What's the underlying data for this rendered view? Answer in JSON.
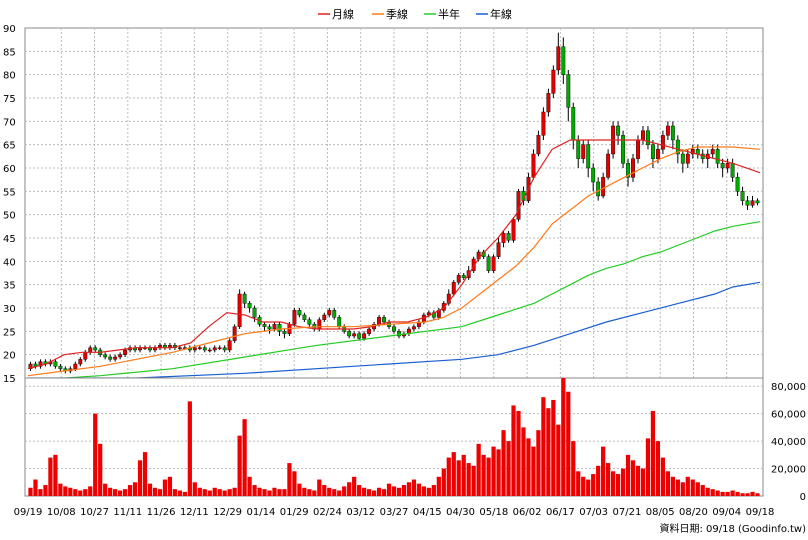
{
  "chart_data": [
    {
      "type": "candlestick",
      "legend": {
        "placement": "top-center",
        "entries": [
          {
            "label": "月線",
            "color": "#e02020"
          },
          {
            "label": "季線",
            "color": "#ff7a1a"
          },
          {
            "label": "半年",
            "color": "#22cc22"
          },
          {
            "label": "年線",
            "color": "#1a5fd0"
          }
        ]
      },
      "ylim": [
        15,
        90
      ],
      "yticks": [
        15,
        20,
        25,
        30,
        35,
        40,
        45,
        50,
        55,
        60,
        65,
        70,
        75,
        80,
        85,
        90
      ],
      "grid": true,
      "colors": {
        "up": "#e00000",
        "down": "#00aa00"
      },
      "series": [
        {
          "name": "月線",
          "x": [
            0,
            4,
            8,
            12,
            16,
            20,
            24,
            28,
            32,
            36,
            40,
            44,
            48,
            52,
            56,
            60,
            64,
            68,
            72,
            76,
            80,
            84,
            88,
            92,
            96,
            100,
            104,
            108,
            112,
            116,
            120,
            124,
            128,
            132,
            136,
            140,
            144,
            148,
            152,
            156,
            162
          ],
          "values": [
            17,
            18,
            20,
            20.5,
            20.5,
            21,
            21.5,
            21.5,
            21.5,
            22.5,
            26,
            29,
            28.5,
            27,
            27,
            26,
            25.5,
            25.5,
            25.5,
            26,
            27,
            27,
            28,
            30,
            35,
            41,
            45,
            50,
            58,
            64,
            66,
            66,
            66,
            66,
            66,
            65,
            64,
            63,
            62,
            61,
            59
          ]
        },
        {
          "name": "季線",
          "x": [
            0,
            8,
            16,
            24,
            32,
            40,
            48,
            56,
            64,
            72,
            80,
            88,
            92,
            96,
            100,
            104,
            108,
            112,
            116,
            120,
            124,
            128,
            132,
            136,
            140,
            144,
            148,
            152,
            156,
            162
          ],
          "values": [
            15.5,
            16.5,
            17.5,
            19,
            20.5,
            22.5,
            24.5,
            25.5,
            26,
            26,
            26.5,
            27,
            28,
            30,
            33,
            36,
            39,
            43,
            48,
            51,
            54,
            56,
            58,
            60,
            62,
            63.5,
            64.5,
            64.5,
            64.5,
            64
          ]
        },
        {
          "name": "半年",
          "x": [
            0,
            16,
            32,
            48,
            64,
            80,
            96,
            104,
            112,
            116,
            120,
            124,
            128,
            132,
            136,
            140,
            144,
            148,
            152,
            156,
            162
          ],
          "values": [
            14.5,
            15.5,
            17,
            19.5,
            22,
            24,
            26,
            28.5,
            31,
            33,
            35,
            37,
            38.5,
            39.5,
            41,
            42,
            43.5,
            45,
            46.5,
            47.5,
            48.5
          ]
        },
        {
          "name": "年線",
          "x": [
            0,
            24,
            48,
            72,
            96,
            104,
            112,
            120,
            128,
            136,
            144,
            152,
            156,
            162
          ],
          "values": [
            15,
            15,
            16,
            17.5,
            19,
            20,
            22,
            24.5,
            27,
            29,
            31,
            33,
            34.5,
            35.5
          ]
        }
      ],
      "candles": [
        [
          17,
          18,
          18.5,
          16.5
        ],
        [
          18,
          17.5,
          18.5,
          17
        ],
        [
          17.5,
          18.5,
          19,
          17
        ],
        [
          18.5,
          18,
          19,
          17.5
        ],
        [
          18,
          18.5,
          19,
          17.5
        ],
        [
          18.5,
          17.5,
          19,
          17
        ],
        [
          17.5,
          17,
          18,
          16.5
        ],
        [
          17,
          16.5,
          17.5,
          16
        ],
        [
          16.5,
          17,
          17.5,
          16
        ],
        [
          17,
          18,
          18.5,
          16.5
        ],
        [
          18,
          19,
          19.5,
          17.5
        ],
        [
          19,
          20.5,
          21,
          18.5
        ],
        [
          20.5,
          21.5,
          22,
          20
        ],
        [
          21.5,
          21,
          22,
          20.5
        ],
        [
          21,
          20,
          21.5,
          19.5
        ],
        [
          20,
          19.5,
          20.5,
          19
        ],
        [
          19.5,
          19,
          20,
          18.5
        ],
        [
          19,
          19.5,
          20,
          18.5
        ],
        [
          19.5,
          20,
          20.5,
          19
        ],
        [
          20,
          21,
          21.5,
          19.5
        ],
        [
          21,
          21.5,
          22,
          20.5
        ],
        [
          21.5,
          21,
          22,
          20.5
        ],
        [
          21,
          21.5,
          22,
          20.5
        ],
        [
          21.5,
          21.5,
          22,
          21
        ],
        [
          21.5,
          21,
          22,
          20.5
        ],
        [
          21,
          21.5,
          22,
          20.5
        ],
        [
          21.5,
          22,
          22.5,
          21
        ],
        [
          22,
          21.5,
          22.5,
          21
        ],
        [
          21.5,
          22,
          22.5,
          21
        ],
        [
          22,
          21.5,
          22.5,
          21
        ],
        [
          21.5,
          21.5,
          22,
          21
        ],
        [
          21.5,
          21.5,
          22,
          21
        ],
        [
          21.5,
          21,
          22,
          20.5
        ],
        [
          21,
          21.5,
          22,
          20.5
        ],
        [
          21.5,
          21.5,
          22,
          21
        ],
        [
          21.5,
          21,
          22,
          20.5
        ],
        [
          21,
          21,
          21.5,
          20.5
        ],
        [
          21,
          21.5,
          22,
          20.5
        ],
        [
          21.5,
          21.5,
          22,
          21
        ],
        [
          21.5,
          21,
          22,
          20.5
        ],
        [
          21,
          23,
          23.5,
          20.5
        ],
        [
          23,
          26,
          26.5,
          22.5
        ],
        [
          26,
          33,
          34,
          25.5
        ],
        [
          33,
          31,
          33.5,
          30
        ],
        [
          31,
          30,
          31.5,
          29
        ],
        [
          30,
          28,
          30.5,
          27
        ],
        [
          28,
          26.5,
          28.5,
          26
        ],
        [
          26.5,
          26,
          27,
          25
        ],
        [
          26,
          25.5,
          26.5,
          24.5
        ],
        [
          25.5,
          26.5,
          27,
          25
        ],
        [
          26.5,
          25,
          27,
          24
        ],
        [
          25,
          24.5,
          25.5,
          23.5
        ],
        [
          24.5,
          26.5,
          27,
          24
        ],
        [
          26.5,
          29.5,
          30,
          26
        ],
        [
          29.5,
          28.5,
          30,
          28
        ],
        [
          28.5,
          27.5,
          29,
          27
        ],
        [
          27.5,
          26.5,
          28,
          26
        ],
        [
          26.5,
          25.5,
          27,
          25
        ],
        [
          25.5,
          27.5,
          28,
          25
        ],
        [
          27.5,
          28.5,
          29,
          27
        ],
        [
          28.5,
          29.5,
          30,
          28
        ],
        [
          29.5,
          28,
          30,
          27.5
        ],
        [
          28,
          26,
          28.5,
          25.5
        ],
        [
          26,
          25,
          26.5,
          24.5
        ],
        [
          25,
          24,
          25.5,
          23.5
        ],
        [
          24,
          24.5,
          25,
          23.5
        ],
        [
          24.5,
          23.5,
          25,
          23
        ],
        [
          23.5,
          24.5,
          25,
          23
        ],
        [
          24.5,
          25.5,
          26,
          24
        ],
        [
          25.5,
          26.5,
          27,
          25
        ],
        [
          26.5,
          28,
          28.5,
          26
        ],
        [
          28,
          27,
          28.5,
          26.5
        ],
        [
          27,
          26,
          27.5,
          25.5
        ],
        [
          26,
          25,
          26.5,
          24.5
        ],
        [
          25,
          24,
          25.5,
          23.5
        ],
        [
          24,
          24.5,
          25,
          23.5
        ],
        [
          24.5,
          25.5,
          26,
          24
        ],
        [
          25.5,
          26,
          26.5,
          25
        ],
        [
          26,
          27,
          27.5,
          25.5
        ],
        [
          27,
          28.5,
          29,
          26.5
        ],
        [
          28.5,
          29,
          29.5,
          28
        ],
        [
          29,
          28,
          29.5,
          27.5
        ],
        [
          28,
          29.5,
          30,
          27.5
        ],
        [
          29.5,
          31,
          31.5,
          29
        ],
        [
          31,
          33,
          34,
          30.5
        ],
        [
          33,
          35.5,
          36,
          32.5
        ],
        [
          35.5,
          37,
          37.5,
          35
        ],
        [
          37,
          36.5,
          37.5,
          36
        ],
        [
          36.5,
          38,
          39,
          36
        ],
        [
          38,
          40.5,
          41,
          37.5
        ],
        [
          40.5,
          42,
          42.5,
          40
        ],
        [
          42,
          41,
          42.5,
          40.5
        ],
        [
          41,
          38,
          41.5,
          37.5
        ],
        [
          38,
          41,
          41.5,
          37.5
        ],
        [
          41,
          44,
          45,
          40.5
        ],
        [
          44,
          46,
          46.5,
          43
        ],
        [
          46,
          44.5,
          46.5,
          44
        ],
        [
          44.5,
          49,
          49.5,
          44
        ],
        [
          49,
          55,
          55.5,
          48.5
        ],
        [
          55,
          53,
          56,
          52
        ],
        [
          53,
          58,
          59,
          52.5
        ],
        [
          58,
          63,
          64,
          57.5
        ],
        [
          63,
          67,
          68,
          62.5
        ],
        [
          67,
          72,
          73,
          66
        ],
        [
          72,
          76,
          77,
          71
        ],
        [
          76,
          81,
          82,
          75
        ],
        [
          81,
          86,
          89,
          80
        ],
        [
          86,
          80,
          88,
          78
        ],
        [
          80,
          73,
          81,
          70
        ],
        [
          73,
          66,
          74,
          64
        ],
        [
          66,
          62,
          67,
          60
        ],
        [
          62,
          65,
          66,
          61
        ],
        [
          65,
          60,
          66,
          58
        ],
        [
          60,
          57,
          61,
          55
        ],
        [
          57,
          54,
          58,
          53
        ],
        [
          54,
          58,
          59,
          53.5
        ],
        [
          58,
          63,
          64,
          57.5
        ],
        [
          63,
          69,
          70,
          62
        ],
        [
          69,
          67,
          70,
          65
        ],
        [
          67,
          61,
          68,
          60
        ],
        [
          61,
          58,
          62,
          56
        ],
        [
          58,
          62,
          63,
          57
        ],
        [
          62,
          66,
          67,
          61
        ],
        [
          66,
          68,
          69,
          65
        ],
        [
          68,
          65,
          69,
          64
        ],
        [
          65,
          62,
          66,
          60
        ],
        [
          62,
          64,
          65,
          61
        ],
        [
          64,
          67,
          68,
          63
        ],
        [
          67,
          69,
          70,
          66
        ],
        [
          69,
          66,
          70,
          64
        ],
        [
          66,
          63,
          67,
          61
        ],
        [
          63,
          61,
          64,
          59
        ],
        [
          61,
          63,
          64,
          60
        ],
        [
          63,
          64,
          65,
          62
        ],
        [
          64,
          63,
          65,
          62
        ],
        [
          63,
          62,
          64,
          61
        ],
        [
          62,
          63,
          64,
          60
        ],
        [
          63,
          64,
          65,
          62
        ],
        [
          64,
          61,
          65,
          60
        ],
        [
          61,
          60,
          62,
          58
        ],
        [
          60,
          61,
          62,
          59
        ],
        [
          61,
          58,
          62,
          57
        ],
        [
          58,
          55,
          59,
          54
        ],
        [
          55,
          53,
          56,
          52
        ],
        [
          53,
          52,
          54,
          51
        ],
        [
          52,
          53,
          54,
          51.5
        ],
        [
          53,
          52.5,
          53.5,
          52
        ]
      ]
    },
    {
      "type": "bar",
      "series_name": "",
      "ylim": [
        0,
        86000
      ],
      "yticks": [
        0,
        20000,
        40000,
        60000,
        80000
      ],
      "ytick_labels": [
        "0",
        "20,000",
        "40,000",
        "60,000",
        "80,000"
      ],
      "color": "#ee0000",
      "grid": true,
      "values": [
        6000,
        12000,
        5000,
        8000,
        28000,
        30000,
        9000,
        7000,
        6000,
        5000,
        4000,
        5000,
        7000,
        60000,
        38000,
        9000,
        6000,
        5000,
        4000,
        5000,
        8000,
        10000,
        26000,
        32000,
        9000,
        6000,
        5000,
        12000,
        14000,
        5000,
        4000,
        3000,
        69000,
        10000,
        6000,
        5000,
        4000,
        6000,
        5000,
        4000,
        5000,
        6000,
        44000,
        56000,
        14000,
        8000,
        6000,
        5000,
        4000,
        6000,
        5000,
        5000,
        24000,
        18000,
        9000,
        6000,
        5000,
        4000,
        12000,
        8000,
        6000,
        5000,
        4000,
        7000,
        10000,
        14000,
        8000,
        6000,
        5000,
        4000,
        6000,
        5000,
        9000,
        7000,
        6000,
        8000,
        10000,
        12000,
        9000,
        7000,
        6000,
        8000,
        14000,
        20000,
        28000,
        32000,
        26000,
        30000,
        24000,
        22000,
        38000,
        30000,
        28000,
        36000,
        34000,
        48000,
        40000,
        66000,
        62000,
        50000,
        42000,
        36000,
        48000,
        72000,
        64000,
        70000,
        52000,
        86000,
        76000,
        40000,
        18000,
        14000,
        12000,
        16000,
        22000,
        36000,
        24000,
        18000,
        16000,
        20000,
        30000,
        26000,
        22000,
        20000,
        42000,
        62000,
        40000,
        28000,
        18000,
        14000,
        12000,
        10000,
        14000,
        12000,
        10000,
        8000,
        6000,
        5000,
        4000,
        3000,
        3000,
        4000,
        3000,
        2000,
        2000,
        3000,
        2000
      ]
    }
  ],
  "x_labels": [
    "09/19",
    "10/08",
    "10/27",
    "11/11",
    "11/26",
    "12/11",
    "12/29",
    "01/14",
    "01/29",
    "02/24",
    "03/12",
    "03/27",
    "04/15",
    "04/30",
    "05/18",
    "06/02",
    "06/17",
    "07/03",
    "07/21",
    "08/05",
    "08/20",
    "09/04",
    "09/18"
  ],
  "source_text": "資料日期: 09/18  (Goodinfo.tw)"
}
